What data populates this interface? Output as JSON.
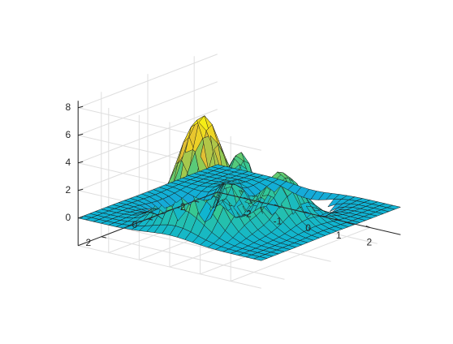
{
  "chart_data": {
    "type": "surface",
    "function": "peaks",
    "colormap": "parula",
    "x_range": [
      -3,
      3
    ],
    "y_range": [
      -3,
      3
    ],
    "grid_points": 25,
    "zlim": [
      -2,
      8.5
    ],
    "clipped_below": -0.8,
    "x_ticks": [
      "-2",
      "-1",
      "0",
      "1",
      "2"
    ],
    "y_ticks": [
      "-2",
      "0",
      "2"
    ],
    "z_ticks": [
      "0",
      "2",
      "4",
      "6",
      "8"
    ],
    "grid": true,
    "view": "default 3-D (az -37.5°, el 30°)"
  }
}
